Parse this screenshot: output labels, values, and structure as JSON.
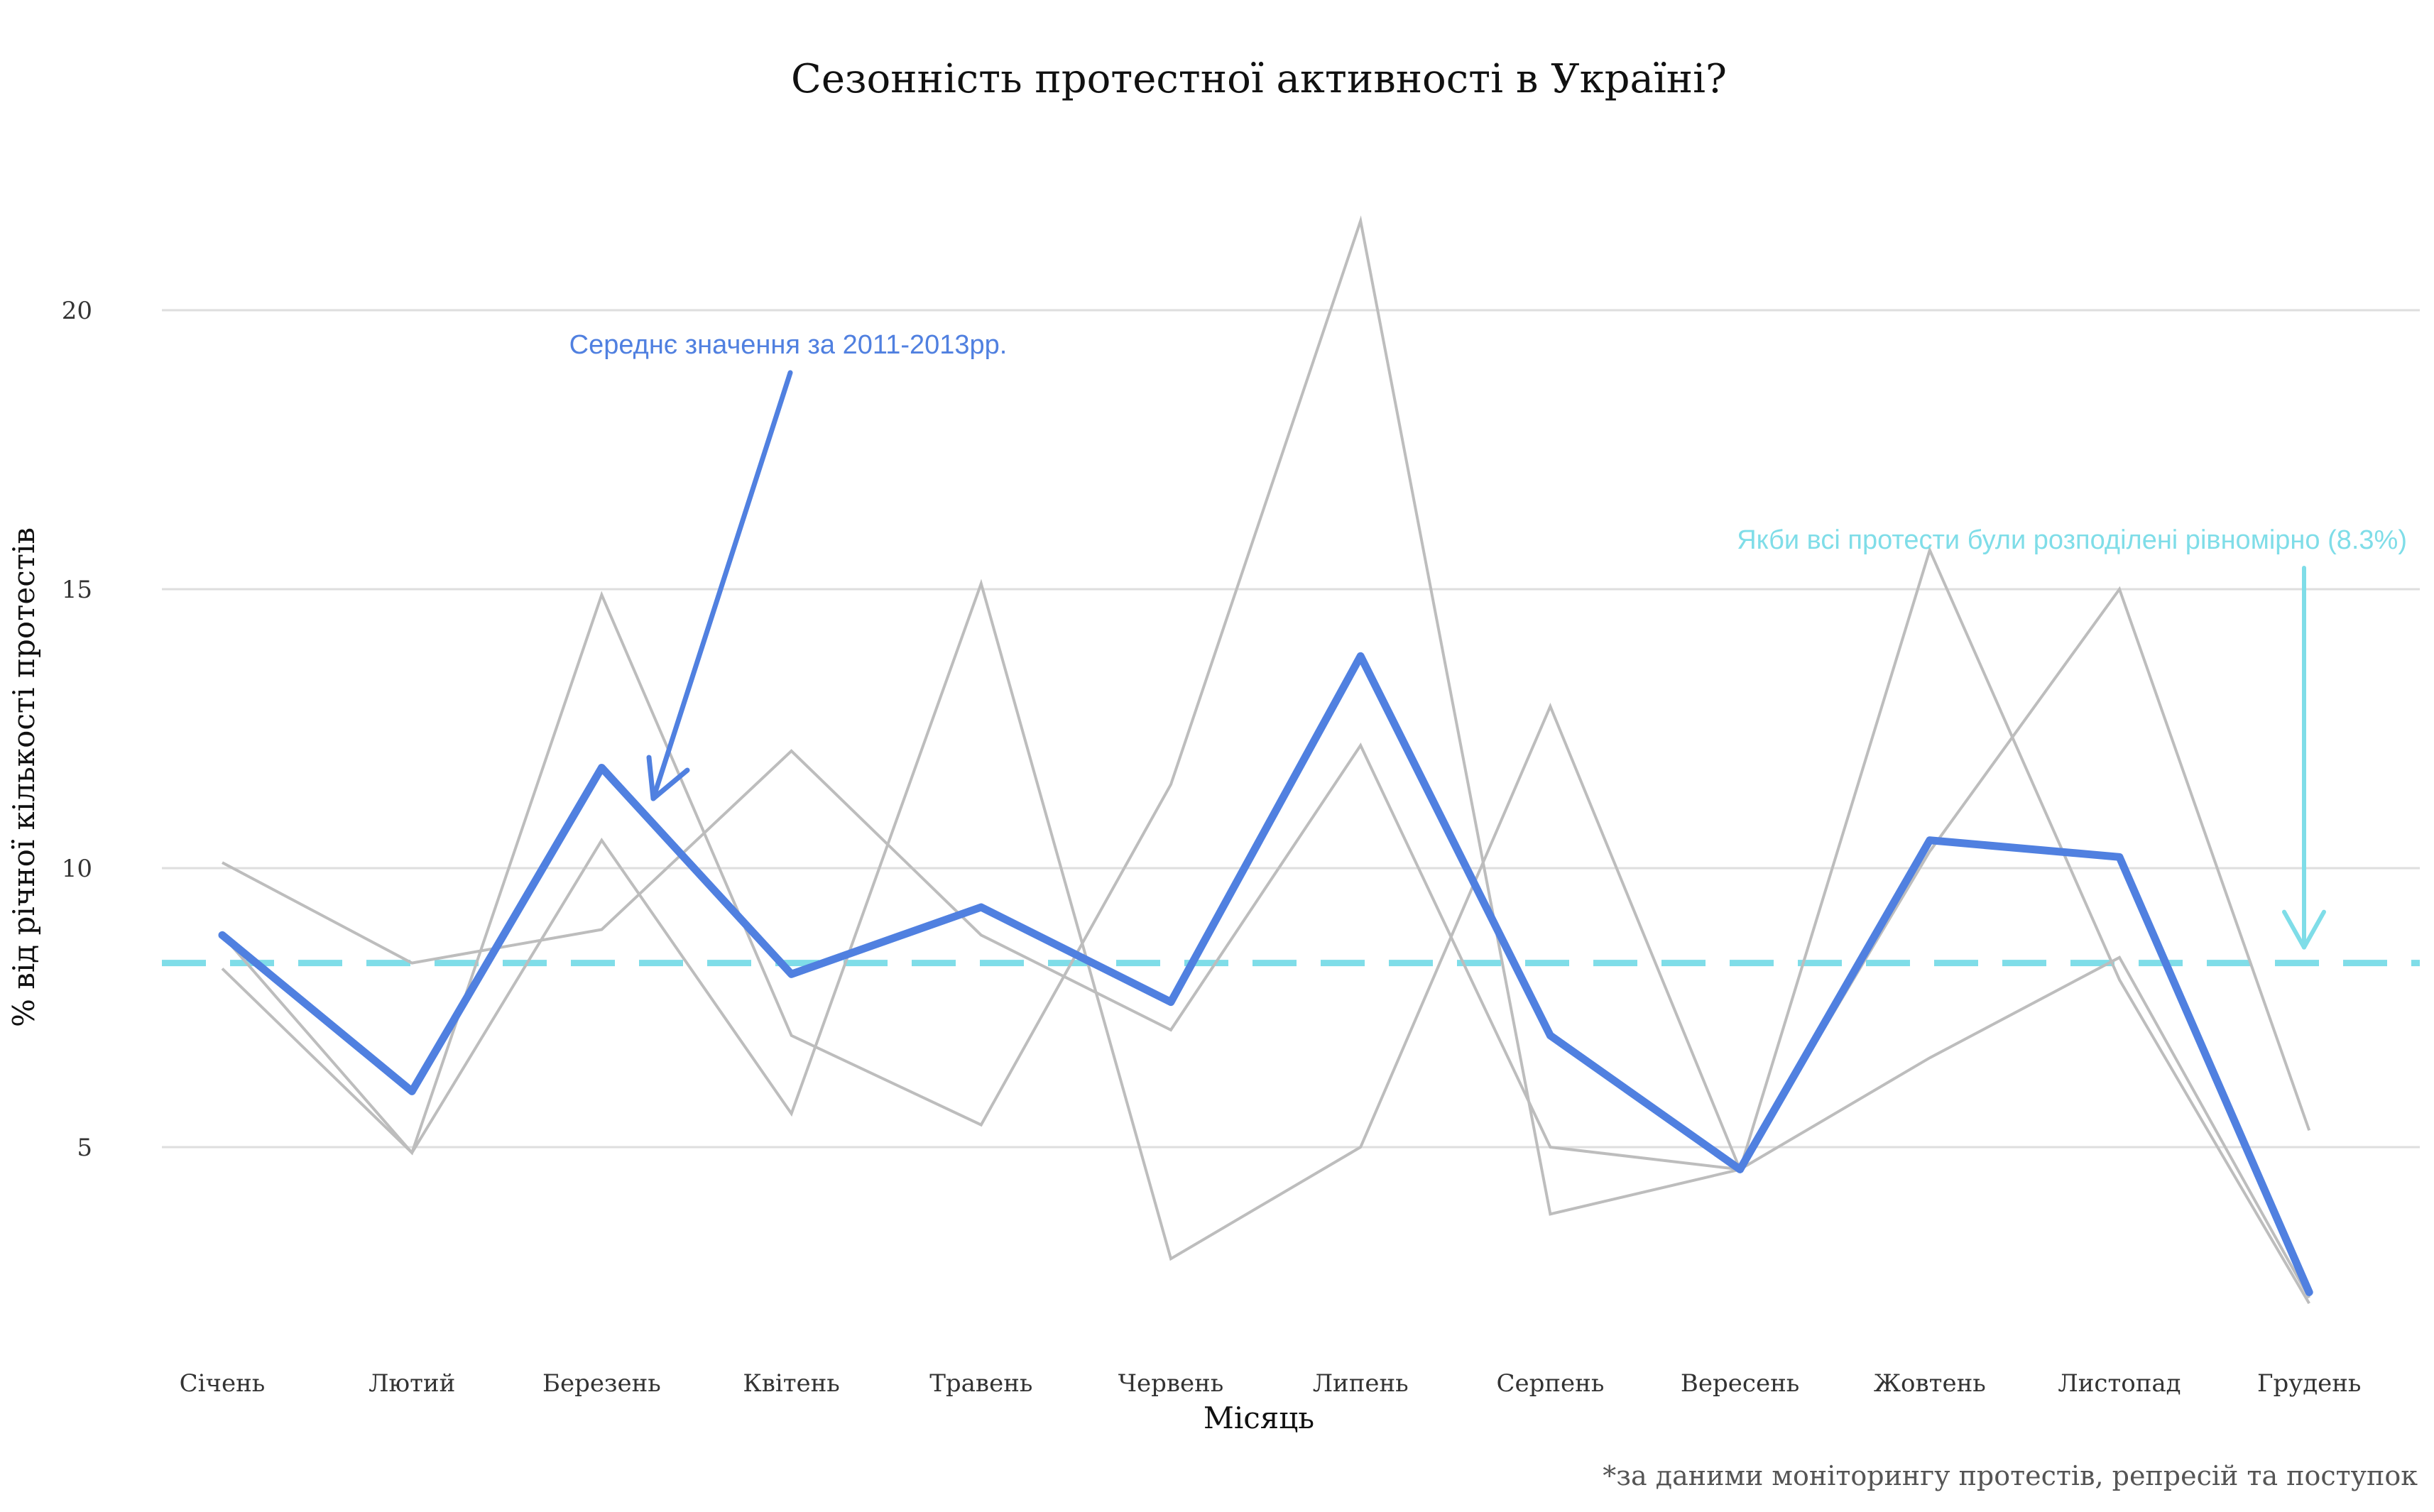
{
  "chart_data": {
    "type": "line",
    "title": "Сезонність протестної активності в Україні?",
    "xlabel": "Місяць",
    "ylabel": "% від річної кількості протестів",
    "categories": [
      "Січень",
      "Лютий",
      "Березень",
      "Квітень",
      "Травень",
      "Червень",
      "Липень",
      "Серпень",
      "Вересень",
      "Жовтень",
      "Листопад",
      "Грудень"
    ],
    "ylim": [
      1.5,
      22.5
    ],
    "yticks": [
      "5",
      "10",
      "15",
      "20"
    ],
    "series": [
      {
        "role": "year",
        "color": "#bdbdbd",
        "values": [
          10.1,
          8.3,
          8.9,
          12.1,
          8.8,
          7.1,
          12.2,
          5.0,
          4.6,
          10.3,
          15.0,
          5.3
        ]
      },
      {
        "role": "year",
        "color": "#bdbdbd",
        "values": [
          8.2,
          4.9,
          14.9,
          7.0,
          5.4,
          11.5,
          21.6,
          3.8,
          4.6,
          15.7,
          8.0,
          2.2
        ]
      },
      {
        "role": "year",
        "color": "#bdbdbd",
        "values": [
          8.8,
          4.9,
          10.5,
          5.6,
          15.1,
          3.0,
          5.0,
          12.9,
          4.6,
          6.6,
          8.4,
          2.3
        ]
      },
      {
        "role": "mean",
        "color": "#5080e0",
        "values": [
          8.8,
          6.0,
          11.8,
          8.1,
          9.3,
          7.6,
          13.8,
          7.0,
          4.6,
          10.5,
          10.2,
          2.4
        ]
      }
    ],
    "reference_line": {
      "value": 8.3,
      "color": "#7fdde8",
      "style": "dashed"
    },
    "annotations": {
      "mean_label": "Середнє значення за 2011-2013рр.",
      "uniform_label": "Якби всі протести були розподілені рівномірно (8.3%)"
    },
    "grid": true,
    "legend": "none"
  },
  "caption": "*за даними моніторингу протестів, репресій та поступок"
}
